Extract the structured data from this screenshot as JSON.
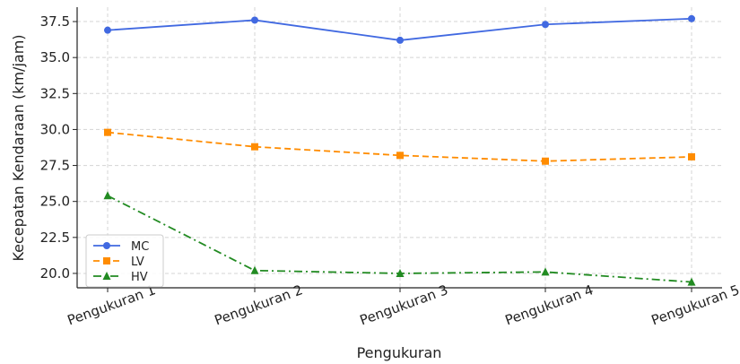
{
  "chart_data": {
    "type": "line",
    "categories": [
      "Pengukuran 1",
      "Pengukuran 2",
      "Pengukuran 3",
      "Pengukuran 4",
      "Pengukuran 5"
    ],
    "series": [
      {
        "name": "MC",
        "values": [
          36.9,
          37.6,
          36.2,
          37.3,
          37.7
        ],
        "color": "#4169e1",
        "linestyle": "solid",
        "marker": "circle"
      },
      {
        "name": "LV",
        "values": [
          29.8,
          28.8,
          28.2,
          27.8,
          28.1
        ],
        "color": "#ff8c00",
        "linestyle": "dashed",
        "marker": "square"
      },
      {
        "name": "HV",
        "values": [
          25.4,
          20.2,
          20.0,
          20.1,
          19.4
        ],
        "color": "#228b22",
        "linestyle": "dashdot",
        "marker": "triangle"
      }
    ],
    "xlabel": "Pengukuran",
    "ylabel": "Kecepatan Kendaraan (km/jam)",
    "ylim": [
      19.0,
      38.5
    ],
    "yticks": [
      "20.0",
      "22.5",
      "25.0",
      "27.5",
      "30.0",
      "32.5",
      "35.0",
      "37.5"
    ],
    "grid": true,
    "legend_position": "lower-left"
  }
}
